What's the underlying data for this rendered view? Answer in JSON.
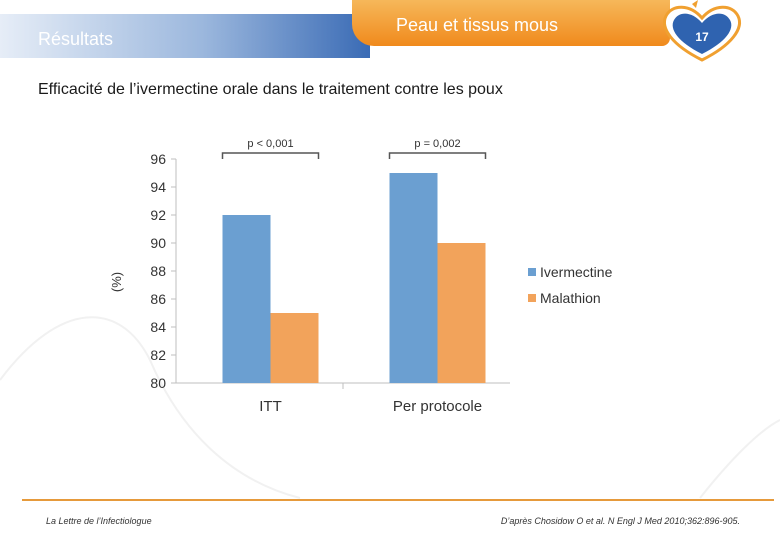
{
  "header": {
    "section": "Résultats",
    "tab_title": "Peau et tissus mous",
    "page_number": "17"
  },
  "slide_title": "Efficacité de l’ivermectine orale dans le traitement contre les poux",
  "chart_data": {
    "type": "bar",
    "categories": [
      "ITT",
      "Per protocole"
    ],
    "series": [
      {
        "name": "Ivermectine",
        "values": [
          92,
          95
        ],
        "color": "#6b9fd1"
      },
      {
        "name": "Malathion",
        "values": [
          85,
          90
        ],
        "color": "#f2a35b"
      }
    ],
    "ylabel": "(%)",
    "ylim": [
      80,
      96
    ],
    "yticks": [
      "80",
      "82",
      "84",
      "86",
      "88",
      "90",
      "92",
      "94",
      "96"
    ],
    "annotations": [
      "p < 0,001",
      "p = 0,002"
    ],
    "legend_position": "right"
  },
  "footer": {
    "left": "La Lettre de l’Infectiologue",
    "right": "D’après Chosidow O et al. N Engl J Med 2010;362:896-905."
  }
}
